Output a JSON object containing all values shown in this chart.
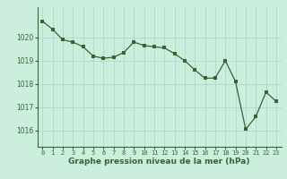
{
  "x": [
    0,
    1,
    2,
    3,
    4,
    5,
    6,
    7,
    8,
    9,
    10,
    11,
    12,
    13,
    14,
    15,
    16,
    17,
    18,
    19,
    20,
    21,
    22,
    23
  ],
  "y": [
    1020.7,
    1020.35,
    1019.9,
    1019.8,
    1019.6,
    1019.2,
    1019.1,
    1019.15,
    1019.35,
    1019.8,
    1019.65,
    1019.6,
    1019.55,
    1019.3,
    1019.0,
    1018.6,
    1018.25,
    1018.25,
    1019.0,
    1018.1,
    1016.05,
    1016.6,
    1017.65,
    1017.25
  ],
  "line_color": "#336633",
  "marker_color": "#336633",
  "bg_color": "#cceedd",
  "grid_color": "#aaddcc",
  "axis_color": "#336633",
  "ylabel_ticks": [
    1016,
    1017,
    1018,
    1019,
    1020
  ],
  "xlabel_label": "Graphe pression niveau de la mer (hPa)",
  "ylim": [
    1015.3,
    1021.3
  ],
  "xlim": [
    -0.5,
    23.5
  ]
}
